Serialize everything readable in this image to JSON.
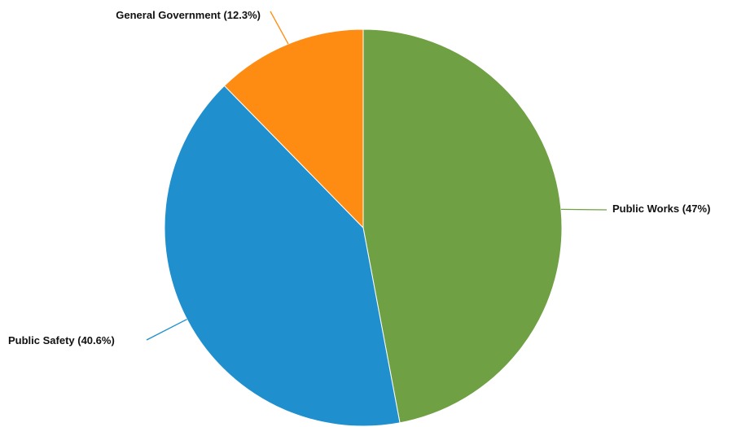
{
  "chart_data": {
    "type": "pie",
    "title": "",
    "slices": [
      {
        "label": "Public Works",
        "value": 47,
        "display": "Public Works (47%)",
        "color": "#6fa043"
      },
      {
        "label": "Public Safety",
        "value": 40.6,
        "display": "Public Safety (40.6%)",
        "color": "#1f8fce"
      },
      {
        "label": "General Government",
        "value": 12.3,
        "display": "General Government (12.3%)",
        "color": "#ff8c12"
      }
    ],
    "start": "12 o'clock",
    "direction": "clockwise"
  }
}
